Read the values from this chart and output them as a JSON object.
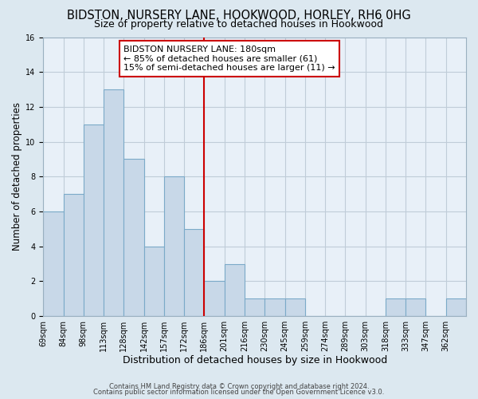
{
  "title": "BIDSTON, NURSERY LANE, HOOKWOOD, HORLEY, RH6 0HG",
  "subtitle": "Size of property relative to detached houses in Hookwood",
  "xlabel": "Distribution of detached houses by size in Hookwood",
  "ylabel": "Number of detached properties",
  "footnote1": "Contains HM Land Registry data © Crown copyright and database right 2024.",
  "footnote2": "Contains public sector information licensed under the Open Government Licence v3.0.",
  "bin_labels": [
    "69sqm",
    "84sqm",
    "98sqm",
    "113sqm",
    "128sqm",
    "142sqm",
    "157sqm",
    "172sqm",
    "186sqm",
    "201sqm",
    "216sqm",
    "230sqm",
    "245sqm",
    "259sqm",
    "274sqm",
    "289sqm",
    "303sqm",
    "318sqm",
    "333sqm",
    "347sqm",
    "362sqm"
  ],
  "bar_heights": [
    6,
    7,
    11,
    13,
    9,
    4,
    8,
    5,
    2,
    3,
    1,
    1,
    1,
    0,
    0,
    0,
    0,
    1,
    1,
    0,
    1
  ],
  "bar_color": "#c8d8e8",
  "bar_edge_color": "#7baac8",
  "property_bar_index": 8,
  "annotation_title": "BIDSTON NURSERY LANE: 180sqm",
  "annotation_line1": "← 85% of detached houses are smaller (61)",
  "annotation_line2": "15% of semi-detached houses are larger (11) →",
  "annotation_box_color": "#ffffff",
  "annotation_box_edge_color": "#cc0000",
  "vline_color": "#cc0000",
  "ylim": [
    0,
    16
  ],
  "yticks": [
    0,
    2,
    4,
    6,
    8,
    10,
    12,
    14,
    16
  ],
  "background_color": "#dce8f0",
  "plot_background_color": "#e8f0f8",
  "grid_color": "#c0ccd8",
  "title_fontsize": 10.5,
  "subtitle_fontsize": 9,
  "xlabel_fontsize": 9,
  "ylabel_fontsize": 8.5,
  "tick_fontsize": 7,
  "annotation_fontsize": 8,
  "footnote_fontsize": 6
}
